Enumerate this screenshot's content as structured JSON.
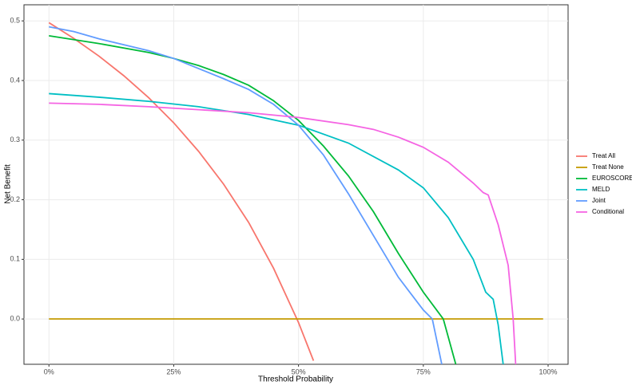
{
  "chart_data": {
    "type": "line",
    "x_label": "Threshold Probability",
    "y_label": "Net Benefit",
    "xlim": [
      -0.05,
      1.04
    ],
    "ylim": [
      -0.076,
      0.527
    ],
    "xticks": [
      {
        "value": 0,
        "label": "0%"
      },
      {
        "value": 0.25,
        "label": "25%"
      },
      {
        "value": 0.5,
        "label": "50%"
      },
      {
        "value": 0.75,
        "label": "75%"
      },
      {
        "value": 1,
        "label": "100%"
      }
    ],
    "yticks": [
      0.0,
      0.1,
      0.2,
      0.3,
      0.4,
      0.5
    ],
    "grid": true,
    "legend": "right",
    "series": [
      {
        "name": "Treat All",
        "color": "#f8766d",
        "x": [
          0,
          0.05,
          0.1,
          0.15,
          0.2,
          0.25,
          0.3,
          0.35,
          0.4,
          0.45,
          0.5,
          0.53
        ],
        "values": [
          0.497,
          0.4705,
          0.441,
          0.408,
          0.371,
          0.329,
          0.281,
          0.226,
          0.162,
          0.085,
          -0.006,
          -0.07
        ]
      },
      {
        "name": "Treat None",
        "color": "#c49a00",
        "x": [
          0,
          0.99
        ],
        "values": [
          0,
          0
        ]
      },
      {
        "name": "EUROSCORE",
        "color": "#00ba38",
        "x": [
          0,
          0.1,
          0.2,
          0.25,
          0.3,
          0.35,
          0.4,
          0.45,
          0.5,
          0.55,
          0.6,
          0.65,
          0.7,
          0.75,
          0.79,
          0.815
        ],
        "values": [
          0.475,
          0.462,
          0.447,
          0.437,
          0.425,
          0.41,
          0.392,
          0.366,
          0.333,
          0.29,
          0.24,
          0.18,
          0.11,
          0.045,
          0.0,
          -0.076
        ]
      },
      {
        "name": "MELD",
        "color": "#00bfc4",
        "x": [
          0,
          0.1,
          0.2,
          0.3,
          0.4,
          0.5,
          0.6,
          0.7,
          0.75,
          0.8,
          0.85,
          0.875,
          0.89,
          0.9,
          0.91
        ],
        "values": [
          0.378,
          0.372,
          0.365,
          0.356,
          0.343,
          0.325,
          0.295,
          0.25,
          0.22,
          0.17,
          0.1,
          0.045,
          0.033,
          -0.01,
          -0.076
        ]
      },
      {
        "name": "Joint",
        "color": "#619cff",
        "x": [
          0,
          0.05,
          0.1,
          0.2,
          0.25,
          0.3,
          0.35,
          0.4,
          0.45,
          0.5,
          0.55,
          0.6,
          0.65,
          0.7,
          0.75,
          0.768,
          0.787
        ],
        "values": [
          0.49,
          0.482,
          0.47,
          0.45,
          0.437,
          0.42,
          0.403,
          0.385,
          0.36,
          0.325,
          0.275,
          0.21,
          0.14,
          0.07,
          0.015,
          0.0,
          -0.076
        ]
      },
      {
        "name": "Conditional",
        "color": "#f564e3",
        "x": [
          0,
          0.1,
          0.2,
          0.3,
          0.4,
          0.5,
          0.6,
          0.65,
          0.7,
          0.75,
          0.8,
          0.85,
          0.87,
          0.88,
          0.9,
          0.92,
          0.93,
          0.935
        ],
        "values": [
          0.362,
          0.36,
          0.356,
          0.351,
          0.346,
          0.338,
          0.326,
          0.318,
          0.305,
          0.288,
          0.263,
          0.228,
          0.212,
          0.208,
          0.158,
          0.09,
          0.0,
          -0.076
        ]
      }
    ]
  }
}
